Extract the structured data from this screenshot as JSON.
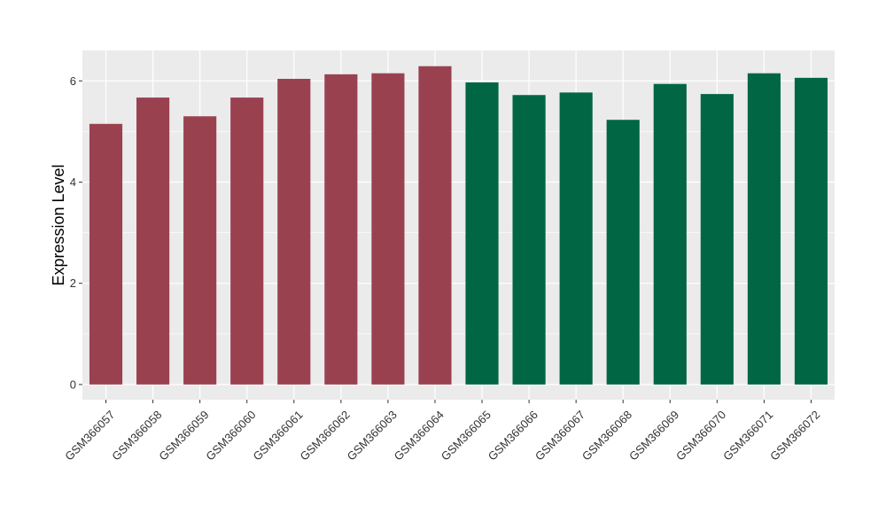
{
  "chart_data": {
    "type": "bar",
    "title": "",
    "xlabel": "",
    "ylabel": "Expression Level",
    "ylim": [
      -0.3,
      6.6
    ],
    "yticks": [
      0,
      2,
      4,
      6
    ],
    "grid": true,
    "legend": "none",
    "categories": [
      "GSM366057",
      "GSM366058",
      "GSM366059",
      "GSM366060",
      "GSM366061",
      "GSM366062",
      "GSM366063",
      "GSM366064",
      "GSM366065",
      "GSM366066",
      "GSM366067",
      "GSM366068",
      "GSM366069",
      "GSM366070",
      "GSM366071",
      "GSM366072"
    ],
    "values": [
      5.15,
      5.67,
      5.3,
      5.67,
      6.04,
      6.13,
      6.15,
      6.29,
      5.97,
      5.72,
      5.77,
      5.23,
      5.94,
      5.74,
      6.15,
      6.06
    ],
    "bar_colors": [
      "#9a414f",
      "#9a414f",
      "#9a414f",
      "#9a414f",
      "#9a414f",
      "#9a414f",
      "#9a414f",
      "#9a414f",
      "#006644",
      "#006644",
      "#006644",
      "#006644",
      "#006644",
      "#006644",
      "#006644",
      "#006644"
    ],
    "panel_background": "#ebebeb",
    "gridline_color": "#ffffff"
  }
}
